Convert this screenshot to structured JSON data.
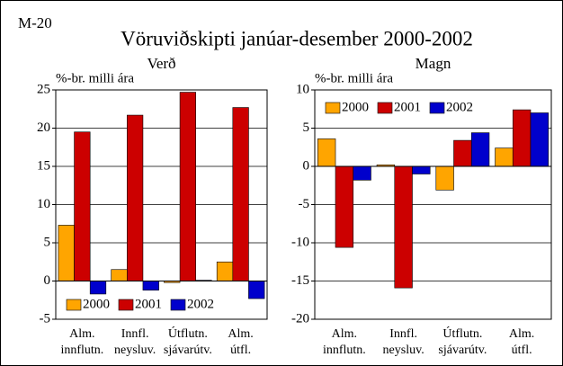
{
  "code": "M-20",
  "title": "Vöruviðskipti janúar-desember 2000-2002",
  "chart_data": [
    {
      "type": "bar",
      "title": "Verð",
      "ylabel": "%-br. milli ára",
      "categories": [
        "Alm. innflutn.",
        "Innfl. neysluv.",
        "Útflutn. sjávarútv.",
        "Alm. útfl."
      ],
      "series": [
        {
          "name": "2000",
          "color": "#ffa500",
          "values": [
            7.3,
            1.5,
            -0.2,
            2.5
          ]
        },
        {
          "name": "2001",
          "color": "#cc0000",
          "values": [
            19.5,
            21.7,
            24.7,
            22.7
          ]
        },
        {
          "name": "2002",
          "color": "#0000cc",
          "values": [
            -1.7,
            -1.2,
            0.1,
            -2.3
          ]
        }
      ],
      "ylim": [
        -5,
        25
      ],
      "yticks": [
        -5,
        0,
        5,
        10,
        15,
        20,
        25
      ],
      "grid": true,
      "legend": "lower-left"
    },
    {
      "type": "bar",
      "title": "Magn",
      "ylabel": "%-br. milli ára",
      "categories": [
        "Alm. innflutn.",
        "Innfl. neysluv.",
        "Útflutn. sjávarútv.",
        "Alm. útfl."
      ],
      "series": [
        {
          "name": "2000",
          "color": "#ffa500",
          "values": [
            3.6,
            0.2,
            -3.1,
            2.4
          ]
        },
        {
          "name": "2001",
          "color": "#cc0000",
          "values": [
            -10.6,
            -15.9,
            3.4,
            7.4
          ]
        },
        {
          "name": "2002",
          "color": "#0000cc",
          "values": [
            -1.8,
            -1.0,
            4.4,
            7.0
          ]
        }
      ],
      "ylim": [
        -20,
        10
      ],
      "yticks": [
        -20,
        -15,
        -10,
        -5,
        0,
        5,
        10
      ],
      "grid": true,
      "legend": "upper-left"
    }
  ]
}
